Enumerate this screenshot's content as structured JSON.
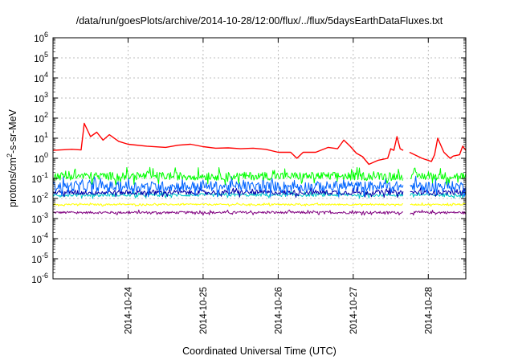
{
  "chart_data": {
    "type": "line",
    "title": "/data/run/goesPlots/archive/2014-10-28/12:00/flux/../flux/5daysEarthDataFluxes.txt",
    "xlabel": "Coordinated Universal Time (UTC)",
    "ylabel": {
      "main": "protons/cm",
      "sup": "2",
      "rest": "-s-sr-MeV"
    },
    "yscale": "log",
    "ylim": [
      -6,
      6
    ],
    "ytick_base": "10",
    "yticks": [
      "6",
      "5",
      "4",
      "3",
      "2",
      "1",
      "0",
      "-1",
      "-2",
      "-3",
      "-4",
      "-5",
      "-6"
    ],
    "xlim": [
      "2014-10-23 00:00",
      "2014-10-28 12:00"
    ],
    "xticks": [
      "2014-10-24",
      "2014-10-25",
      "2014-10-26",
      "2014-10-27",
      "2014-10-28"
    ],
    "grid": true,
    "data_gaps": [
      [
        "2014-10-27 16:00",
        "2014-10-27 18:00"
      ]
    ],
    "series": [
      {
        "color": "#ff0000",
        "points": [
          [
            "2014-10-23 00:00",
            2.5
          ],
          [
            "2014-10-23 06:00",
            2.8
          ],
          [
            "2014-10-23 09:00",
            2.6
          ],
          [
            "2014-10-23 10:00",
            55
          ],
          [
            "2014-10-23 12:00",
            12
          ],
          [
            "2014-10-23 14:00",
            20
          ],
          [
            "2014-10-23 16:00",
            8
          ],
          [
            "2014-10-23 18:00",
            15
          ],
          [
            "2014-10-23 21:00",
            7
          ],
          [
            "2014-10-24 00:00",
            5
          ],
          [
            "2014-10-24 06:00",
            4
          ],
          [
            "2014-10-24 12:00",
            3.5
          ],
          [
            "2014-10-24 16:00",
            4.5
          ],
          [
            "2014-10-24 20:00",
            5
          ],
          [
            "2014-10-25 00:00",
            3.8
          ],
          [
            "2014-10-25 04:00",
            3.2
          ],
          [
            "2014-10-25 08:00",
            3.3
          ],
          [
            "2014-10-25 12:00",
            3.0
          ],
          [
            "2014-10-25 16:00",
            3.2
          ],
          [
            "2014-10-25 20:00",
            2.8
          ],
          [
            "2014-10-26 00:00",
            2.0
          ],
          [
            "2014-10-26 04:00",
            2.0
          ],
          [
            "2014-10-26 06:00",
            1.0
          ],
          [
            "2014-10-26 08:00",
            2.0
          ],
          [
            "2014-10-26 12:00",
            2.0
          ],
          [
            "2014-10-26 16:00",
            3.5
          ],
          [
            "2014-10-26 19:00",
            3.0
          ],
          [
            "2014-10-26 21:00",
            8.0
          ],
          [
            "2014-10-26 23:00",
            4.0
          ],
          [
            "2014-10-27 01:00",
            1.8
          ],
          [
            "2014-10-27 03:00",
            1.2
          ],
          [
            "2014-10-27 05:00",
            0.5
          ],
          [
            "2014-10-27 08:00",
            0.8
          ],
          [
            "2014-10-27 11:00",
            1.0
          ],
          [
            "2014-10-27 12:00",
            3.0
          ],
          [
            "2014-10-27 13:00",
            2.5
          ],
          [
            "2014-10-27 14:00",
            12
          ],
          [
            "2014-10-27 15:00",
            3.0
          ],
          [
            "2014-10-27 16:00",
            2.5
          ],
          null,
          [
            "2014-10-27 18:00",
            2.0
          ],
          [
            "2014-10-27 22:00",
            1.0
          ],
          [
            "2014-10-28 01:00",
            0.7
          ],
          [
            "2014-10-28 02:00",
            1.5
          ],
          [
            "2014-10-28 03:00",
            10
          ],
          [
            "2014-10-28 05:00",
            2.0
          ],
          [
            "2014-10-28 07:00",
            1.0
          ],
          [
            "2014-10-28 08:00",
            1.3
          ],
          [
            "2014-10-28 10:00",
            1.5
          ],
          [
            "2014-10-28 11:00",
            4.0
          ],
          [
            "2014-10-28 12:00",
            2.5
          ]
        ]
      },
      {
        "color": "#00ff00",
        "level": 0.13,
        "noise": 0.2
      },
      {
        "color": "#0064ff",
        "level": 0.04,
        "noise": 0.25
      },
      {
        "color": "#0000aa",
        "level": 0.02,
        "noise": 0.12
      },
      {
        "color": "#00c8c8",
        "level": 0.015,
        "noise": 0.08
      },
      {
        "color": "#ffff00",
        "level": 0.005,
        "noise": 0.04
      },
      {
        "color": "#800080",
        "level": 0.002,
        "noise": 0.06
      }
    ]
  }
}
